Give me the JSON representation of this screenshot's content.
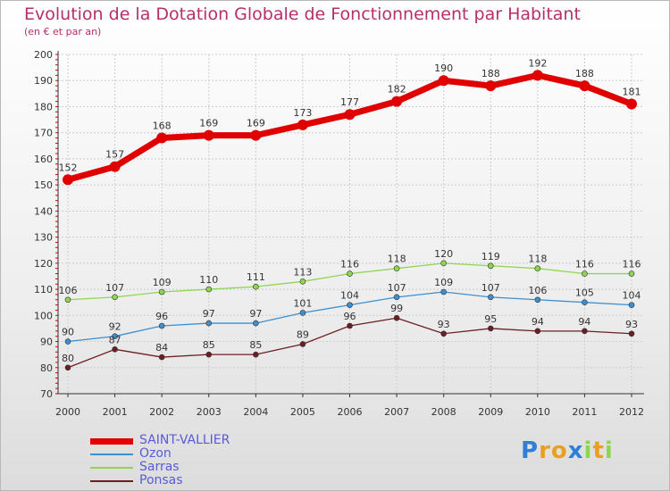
{
  "header": {
    "title": "Evolution de la Dotation Globale de Fonctionnement par Habitant",
    "subtitle": "(en € et par an)"
  },
  "colors": {
    "title": "#b5306a",
    "legend_text": "#5a5ad8",
    "grid": "#cccccc",
    "axis": "#333333"
  },
  "chart_data": {
    "type": "line",
    "title": "Evolution de la Dotation Globale de Fonctionnement par Habitant",
    "subtitle": "(en € et par an)",
    "xlabel": "",
    "ylabel": "",
    "x": [
      "2000",
      "2001",
      "2002",
      "2003",
      "2004",
      "2005",
      "2006",
      "2007",
      "2008",
      "2009",
      "2010",
      "2011",
      "2012"
    ],
    "ylim": [
      70,
      200
    ],
    "yticks": [
      70,
      80,
      90,
      100,
      110,
      120,
      130,
      140,
      150,
      160,
      170,
      180,
      190,
      200
    ],
    "grid": true,
    "series": [
      {
        "name": "SAINT-VALLIER",
        "color": "#e00000",
        "values": [
          152,
          157,
          168,
          169,
          169,
          173,
          177,
          182,
          190,
          188,
          192,
          188,
          181
        ]
      },
      {
        "name": "Ozon",
        "color": "#3e8fd0",
        "values": [
          90,
          92,
          96,
          97,
          97,
          101,
          104,
          107,
          109,
          107,
          106,
          105,
          104
        ]
      },
      {
        "name": "Sarras",
        "color": "#8ed650",
        "values": [
          106,
          107,
          109,
          110,
          111,
          113,
          116,
          118,
          120,
          119,
          118,
          116,
          116
        ]
      },
      {
        "name": "Ponsas",
        "color": "#6b1f25",
        "values": [
          80,
          87,
          84,
          85,
          85,
          89,
          96,
          99,
          93,
          95,
          94,
          94,
          93
        ]
      }
    ]
  },
  "logo": {
    "letters": [
      {
        "ch": "P",
        "color": "#2f7fd6"
      },
      {
        "ch": "r",
        "color": "#e8a020"
      },
      {
        "ch": "o",
        "color": "#e8a020"
      },
      {
        "ch": "x",
        "color": "#2f7fd6"
      },
      {
        "ch": "i",
        "color": "#8ed650"
      },
      {
        "ch": "t",
        "color": "#e8a020"
      },
      {
        "ch": "i",
        "color": "#8ed650"
      }
    ]
  }
}
